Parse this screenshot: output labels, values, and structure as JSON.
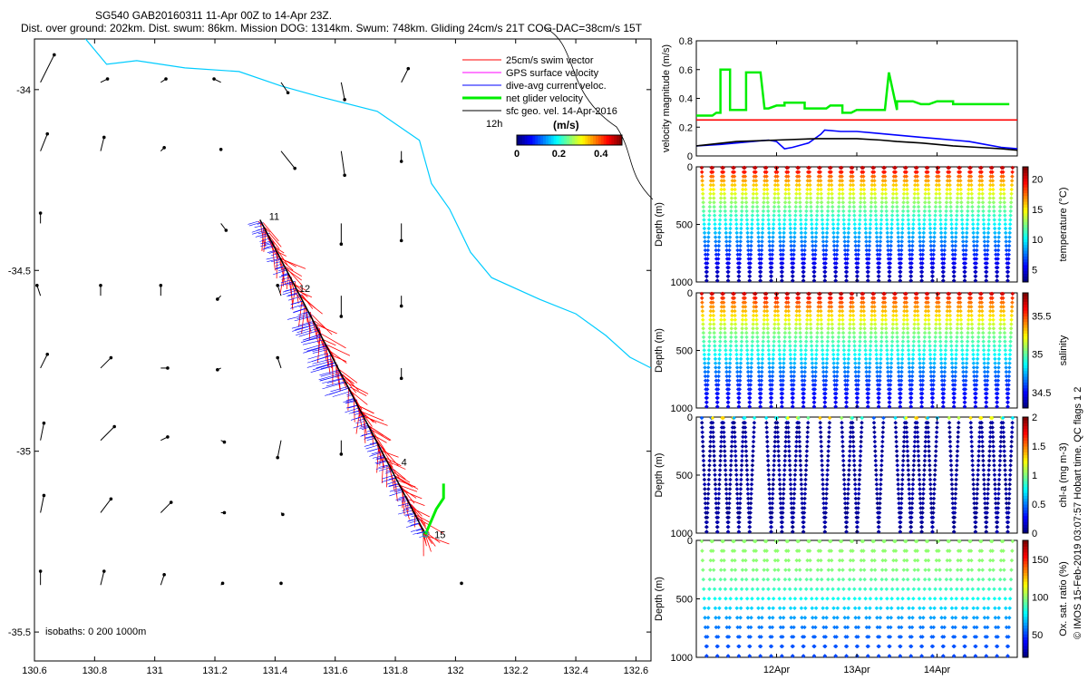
{
  "header": {
    "line1": "SG540 GAB20160311 11-Apr 00Z to 14-Apr 23Z.",
    "line2": "Dist. over ground: 202km. Dist. swum: 86km. Mission DOG: 1314km. Swum: 748km. Gliding 24cm/s 21T COG-DAC=38cm/s 15T"
  },
  "colors": {
    "swim": "#ff0000",
    "gps": "#ff00ff",
    "dac": "#0000ff",
    "net": "#00ee00",
    "geo": "#000000",
    "coast": "#00ccff"
  },
  "chart_data": [
    {
      "type": "scatter",
      "name": "map",
      "x_ticks": [
        "130.6",
        "130.8",
        "131",
        "131.2",
        "131.4",
        "131.6",
        "131.8",
        "132",
        "132.2",
        "132.4",
        "132.6"
      ],
      "y_ticks": [
        "-34",
        "-34.5",
        "-35",
        "-35.5"
      ],
      "xlim": [
        130.6,
        132.65
      ],
      "ylim": [
        -35.58,
        -33.86
      ],
      "legend": [
        "25cm/s swim vector",
        "GPS surface velocity",
        "dive-avg current veloc.",
        "net glider velocity",
        "sfc geo. vel. 14-Apr-2016"
      ],
      "scale_label": "12h",
      "colorbar_title": "(m/s)",
      "colorbar_ticks": [
        "0",
        "0.2",
        "0.4"
      ],
      "colorbar_range": [
        0,
        0.5
      ],
      "isobaths_label": "isobaths: 0   200  1000m",
      "track_labels": [
        "11",
        "12",
        "4",
        "15"
      ],
      "track_start": [
        131.35,
        -34.36
      ],
      "track_end": [
        131.9,
        -35.23
      ],
      "label_points": [
        [
          131.38,
          -34.36
        ],
        [
          131.48,
          -34.56
        ],
        [
          131.82,
          -35.04
        ],
        [
          131.93,
          -35.24
        ]
      ],
      "coastline": [
        [
          130.77,
          -33.86
        ],
        [
          130.84,
          -33.93
        ],
        [
          130.94,
          -33.92
        ],
        [
          131.1,
          -33.94
        ],
        [
          131.28,
          -33.95
        ],
        [
          131.42,
          -33.99
        ],
        [
          131.55,
          -34.02
        ],
        [
          131.74,
          -34.06
        ],
        [
          131.88,
          -34.14
        ],
        [
          131.92,
          -34.26
        ],
        [
          131.98,
          -34.33
        ],
        [
          132.05,
          -34.45
        ],
        [
          132.12,
          -34.52
        ],
        [
          132.28,
          -34.58
        ],
        [
          132.4,
          -34.62
        ],
        [
          132.5,
          -34.68
        ],
        [
          132.58,
          -34.74
        ],
        [
          132.65,
          -34.77
        ]
      ],
      "geo_vectors": [
        {
          "lat": -33.98,
          "lon": 130.62,
          "u": 0.4,
          "v": 0.8
        },
        {
          "lat": -33.98,
          "lon": 130.82,
          "u": 0.2,
          "v": 0.1
        },
        {
          "lat": -33.98,
          "lon": 131.02,
          "u": 0.15,
          "v": 0.1
        },
        {
          "lat": -33.98,
          "lon": 131.22,
          "u": -0.2,
          "v": 0.1
        },
        {
          "lat": -33.98,
          "lon": 131.42,
          "u": 0.2,
          "v": -0.3
        },
        {
          "lat": -33.98,
          "lon": 131.62,
          "u": 0.1,
          "v": -0.5
        },
        {
          "lat": -33.98,
          "lon": 131.82,
          "u": 0.2,
          "v": 0.4
        },
        {
          "lat": -34.17,
          "lon": 130.62,
          "u": 0.2,
          "v": 0.5
        },
        {
          "lat": -34.17,
          "lon": 130.82,
          "u": 0.1,
          "v": 0.4
        },
        {
          "lat": -34.17,
          "lon": 131.02,
          "u": 0.1,
          "v": 0.1
        },
        {
          "lat": -34.17,
          "lon": 131.22,
          "u": 0.0,
          "v": 0.05
        },
        {
          "lat": -34.17,
          "lon": 131.42,
          "u": 0.4,
          "v": -0.5
        },
        {
          "lat": -34.17,
          "lon": 131.62,
          "u": 0.1,
          "v": -0.7
        },
        {
          "lat": -34.17,
          "lon": 131.82,
          "u": 0.0,
          "v": -0.3
        },
        {
          "lat": -34.37,
          "lon": 130.62,
          "u": 0.0,
          "v": 0.3
        },
        {
          "lat": -34.37,
          "lon": 131.22,
          "u": 0.15,
          "v": -0.2
        },
        {
          "lat": -34.37,
          "lon": 131.62,
          "u": 0.0,
          "v": -0.6
        },
        {
          "lat": -34.37,
          "lon": 131.82,
          "u": 0.0,
          "v": -0.5
        },
        {
          "lat": -34.57,
          "lon": 130.62,
          "u": -0.1,
          "v": 0.3
        },
        {
          "lat": -34.57,
          "lon": 130.82,
          "u": 0.0,
          "v": 0.3
        },
        {
          "lat": -34.57,
          "lon": 131.02,
          "u": 0.0,
          "v": 0.3
        },
        {
          "lat": -34.57,
          "lon": 131.22,
          "u": -0.1,
          "v": -0.1
        },
        {
          "lat": -34.57,
          "lon": 131.42,
          "u": -0.1,
          "v": 0.3
        },
        {
          "lat": -34.57,
          "lon": 131.62,
          "u": 0.0,
          "v": -0.6
        },
        {
          "lat": -34.57,
          "lon": 131.82,
          "u": 0.0,
          "v": -0.3
        },
        {
          "lat": -34.77,
          "lon": 130.62,
          "u": 0.2,
          "v": 0.4
        },
        {
          "lat": -34.77,
          "lon": 130.82,
          "u": 0.3,
          "v": 0.3
        },
        {
          "lat": -34.77,
          "lon": 131.02,
          "u": 0.2,
          "v": 0.0
        },
        {
          "lat": -34.77,
          "lon": 131.22,
          "u": -0.1,
          "v": -0.05
        },
        {
          "lat": -34.77,
          "lon": 131.42,
          "u": -0.1,
          "v": 0.3
        },
        {
          "lat": -34.77,
          "lon": 131.82,
          "u": 0.0,
          "v": -0.3
        },
        {
          "lat": -34.97,
          "lon": 130.62,
          "u": 0.1,
          "v": 0.5
        },
        {
          "lat": -34.97,
          "lon": 130.82,
          "u": 0.4,
          "v": 0.4
        },
        {
          "lat": -34.97,
          "lon": 131.02,
          "u": 0.2,
          "v": 0.1
        },
        {
          "lat": -34.97,
          "lon": 131.22,
          "u": 0.1,
          "v": -0.05
        },
        {
          "lat": -34.97,
          "lon": 131.42,
          "u": -0.1,
          "v": -0.5
        },
        {
          "lat": -34.97,
          "lon": 131.62,
          "u": 0.0,
          "v": -0.4
        },
        {
          "lat": -35.17,
          "lon": 130.62,
          "u": 0.1,
          "v": 0.5
        },
        {
          "lat": -35.17,
          "lon": 130.82,
          "u": 0.3,
          "v": 0.4
        },
        {
          "lat": -35.17,
          "lon": 131.02,
          "u": 0.3,
          "v": 0.3
        },
        {
          "lat": -35.17,
          "lon": 131.22,
          "u": 0.1,
          "v": 0.0
        },
        {
          "lat": -35.17,
          "lon": 131.42,
          "u": 0.05,
          "v": -0.05
        },
        {
          "lat": -35.37,
          "lon": 130.62,
          "u": 0.0,
          "v": 0.4
        },
        {
          "lat": -35.37,
          "lon": 130.82,
          "u": 0.1,
          "v": 0.4
        },
        {
          "lat": -35.37,
          "lon": 131.02,
          "u": 0.1,
          "v": 0.3
        },
        {
          "lat": -35.37,
          "lon": 131.22,
          "u": 0.05,
          "v": 0.05
        },
        {
          "lat": -35.37,
          "lon": 131.42,
          "u": 0.0,
          "v": 0.05
        },
        {
          "lat": -35.37,
          "lon": 132.02,
          "u": 0.0,
          "v": 0.05
        }
      ]
    },
    {
      "type": "line",
      "name": "velocity",
      "ylabel": "velocity magnitude (m/s)",
      "ylim": [
        0,
        0.8
      ],
      "y_ticks": [
        "0",
        "0.2",
        "0.4",
        "0.6",
        "0.8"
      ],
      "xlim": [
        11,
        15
      ],
      "series": [
        {
          "name": "swim",
          "color": "#ff0000",
          "x": [
            11,
            15
          ],
          "y": [
            0.25,
            0.25
          ]
        },
        {
          "name": "net",
          "color": "#00ee00",
          "x": [
            11,
            11.2,
            11.25,
            11.3,
            11.3,
            11.32,
            11.42,
            11.42,
            11.55,
            11.62,
            11.62,
            11.8,
            11.85,
            11.9,
            12.0,
            12.1,
            12.1,
            12.2,
            12.3,
            12.35,
            12.35,
            12.62,
            12.67,
            12.67,
            12.82,
            12.82,
            12.93,
            13.0,
            13.1,
            13.2,
            13.35,
            13.4,
            13.5,
            13.5,
            13.6,
            13.7,
            13.8,
            13.9,
            14.0,
            14.1,
            14.2,
            14.2,
            14.4,
            14.5,
            14.7,
            14.9
          ],
          "y": [
            0.28,
            0.28,
            0.3,
            0.3,
            0.6,
            0.6,
            0.6,
            0.32,
            0.32,
            0.32,
            0.58,
            0.58,
            0.33,
            0.33,
            0.35,
            0.35,
            0.37,
            0.37,
            0.37,
            0.37,
            0.33,
            0.33,
            0.35,
            0.35,
            0.35,
            0.3,
            0.3,
            0.32,
            0.32,
            0.32,
            0.32,
            0.58,
            0.32,
            0.38,
            0.38,
            0.38,
            0.36,
            0.36,
            0.38,
            0.38,
            0.38,
            0.36,
            0.36,
            0.36,
            0.36,
            0.36
          ]
        },
        {
          "name": "dac",
          "color": "#0000ff",
          "x": [
            11,
            11.3,
            11.5,
            11.7,
            11.9,
            12.0,
            12.1,
            12.2,
            12.4,
            12.55,
            12.6,
            12.8,
            13.0,
            13.2,
            13.4,
            13.6,
            13.8,
            14.0,
            14.2,
            14.4,
            14.6,
            14.8,
            15
          ],
          "y": [
            0.07,
            0.08,
            0.09,
            0.1,
            0.11,
            0.1,
            0.05,
            0.06,
            0.09,
            0.15,
            0.18,
            0.17,
            0.17,
            0.16,
            0.15,
            0.14,
            0.13,
            0.12,
            0.11,
            0.1,
            0.08,
            0.06,
            0.05
          ]
        },
        {
          "name": "geo",
          "color": "#000000",
          "x": [
            11,
            11.5,
            12.0,
            12.5,
            13.0,
            13.3,
            13.5,
            13.8,
            14.0,
            14.2,
            14.5,
            14.8,
            15
          ],
          "y": [
            0.07,
            0.1,
            0.11,
            0.12,
            0.12,
            0.11,
            0.1,
            0.09,
            0.08,
            0.07,
            0.06,
            0.05,
            0.04
          ]
        }
      ]
    },
    {
      "type": "scatter",
      "name": "temperature",
      "ylabel": "Depth (m)",
      "ylim": [
        0,
        1000
      ],
      "y_ticks": [
        "0",
        "500",
        "1000"
      ],
      "colorbar_label": "temperature (°C)",
      "colorbar_ticks": [
        "5",
        "10",
        "15",
        "20"
      ],
      "crange": [
        3,
        22
      ],
      "n_dives": 29,
      "profile": [
        [
          0,
          21
        ],
        [
          30,
          20
        ],
        [
          60,
          18.5
        ],
        [
          100,
          17
        ],
        [
          150,
          16
        ],
        [
          200,
          15
        ],
        [
          300,
          13
        ],
        [
          400,
          11.5
        ],
        [
          500,
          10
        ],
        [
          600,
          8.5
        ],
        [
          700,
          7
        ],
        [
          800,
          5.5
        ],
        [
          900,
          4.5
        ],
        [
          1000,
          3.5
        ]
      ]
    },
    {
      "type": "scatter",
      "name": "salinity",
      "ylabel": "Depth (m)",
      "ylim": [
        0,
        1000
      ],
      "y_ticks": [
        "0",
        "500",
        "1000"
      ],
      "colorbar_label": "salinity",
      "colorbar_ticks": [
        "34.5",
        "35",
        "35.5"
      ],
      "crange": [
        34.3,
        35.8
      ],
      "n_dives": 29,
      "profile": [
        [
          0,
          35.7
        ],
        [
          40,
          35.55
        ],
        [
          80,
          35.45
        ],
        [
          150,
          35.35
        ],
        [
          250,
          35.2
        ],
        [
          350,
          35.05
        ],
        [
          450,
          34.95
        ],
        [
          550,
          34.85
        ],
        [
          650,
          34.7
        ],
        [
          800,
          34.55
        ],
        [
          1000,
          34.45
        ]
      ]
    },
    {
      "type": "scatter",
      "name": "chlorophyll",
      "ylabel": "Depth (m)",
      "ylim": [
        0,
        1000
      ],
      "y_ticks": [
        "0",
        "500",
        "1000"
      ],
      "colorbar_label": "chl-a (mg m-3)",
      "colorbar_ticks": [
        "0",
        "0.5",
        "1",
        "1.5",
        "2"
      ],
      "crange": [
        0,
        2
      ],
      "present_dives": [
        0,
        1,
        2,
        3,
        4,
        6,
        7,
        8,
        9,
        11,
        13,
        14,
        16,
        18,
        19,
        20,
        21,
        23,
        25,
        26,
        27,
        28
      ],
      "n_dives": 29
    },
    {
      "type": "scatter",
      "name": "oxygen",
      "ylabel": "Depth (m)",
      "ylim": [
        0,
        1000
      ],
      "y_ticks": [
        "0",
        "500",
        "1000"
      ],
      "x_ticks": [
        "12Apr",
        "13Apr",
        "14Apr"
      ],
      "colorbar_label": "Ox. sat. ratio (%)",
      "colorbar_ticks": [
        "50",
        "100",
        "150"
      ],
      "crange": [
        20,
        175
      ],
      "n_dives": 29,
      "profile": [
        [
          0,
          100
        ],
        [
          150,
          100
        ],
        [
          250,
          98
        ],
        [
          400,
          88
        ],
        [
          500,
          80
        ],
        [
          600,
          70
        ],
        [
          700,
          60
        ],
        [
          800,
          55
        ],
        [
          900,
          52
        ],
        [
          1000,
          50
        ]
      ]
    }
  ],
  "footer": {
    "credit": "© IMOS 15-Feb-2019 03:07:57 Hobart time. QC flags 1  2"
  }
}
